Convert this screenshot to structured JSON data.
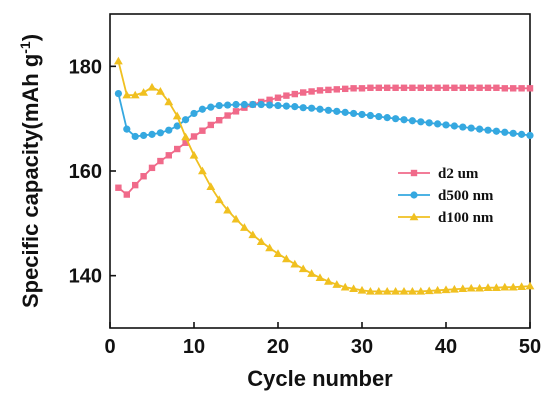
{
  "chart_data": {
    "type": "line",
    "xlabel": "Cycle number",
    "ylabel": "Specific capacity(mAh g",
    "ylabel_superscript": "-1",
    "ylabel_close": ")",
    "xlim": [
      0,
      50
    ],
    "ylim": [
      130,
      190
    ],
    "xticks": [
      0,
      10,
      20,
      30,
      40,
      50
    ],
    "yticks": [
      140,
      160,
      180
    ],
    "grid": false,
    "legend_position": "center-right",
    "x": [
      1,
      2,
      3,
      4,
      5,
      6,
      7,
      8,
      9,
      10,
      11,
      12,
      13,
      14,
      15,
      16,
      17,
      18,
      19,
      20,
      21,
      22,
      23,
      24,
      25,
      26,
      27,
      28,
      29,
      30,
      31,
      32,
      33,
      34,
      35,
      36,
      37,
      38,
      39,
      40,
      41,
      42,
      43,
      44,
      45,
      46,
      47,
      48,
      49,
      50
    ],
    "series": [
      {
        "name": "d2 um",
        "color": "#f06a8a",
        "marker": "square",
        "values": [
          156.8,
          155.5,
          157.3,
          159.0,
          160.6,
          161.9,
          163.0,
          164.2,
          165.4,
          166.6,
          167.7,
          168.8,
          169.7,
          170.6,
          171.4,
          172.1,
          172.7,
          173.2,
          173.6,
          174.0,
          174.4,
          174.7,
          175.0,
          175.2,
          175.4,
          175.5,
          175.6,
          175.7,
          175.8,
          175.8,
          175.9,
          175.9,
          175.9,
          175.9,
          175.9,
          175.9,
          175.9,
          175.9,
          175.9,
          175.9,
          175.9,
          175.9,
          175.9,
          175.9,
          175.9,
          175.9,
          175.8,
          175.8,
          175.8,
          175.8
        ]
      },
      {
        "name": "d500 nm",
        "color": "#35a8e0",
        "marker": "circle",
        "values": [
          174.8,
          168.0,
          166.6,
          166.8,
          167.0,
          167.3,
          167.8,
          168.6,
          169.8,
          171.0,
          171.8,
          172.2,
          172.5,
          172.6,
          172.7,
          172.7,
          172.7,
          172.7,
          172.6,
          172.5,
          172.4,
          172.3,
          172.1,
          172.0,
          171.8,
          171.6,
          171.4,
          171.2,
          171.0,
          170.8,
          170.6,
          170.4,
          170.2,
          170.0,
          169.8,
          169.6,
          169.4,
          169.2,
          169.0,
          168.8,
          168.6,
          168.4,
          168.2,
          168.0,
          167.8,
          167.6,
          167.4,
          167.2,
          167.0,
          166.8
        ]
      },
      {
        "name": "d100 nm",
        "color": "#f0c020",
        "marker": "triangle",
        "values": [
          181.0,
          174.5,
          174.5,
          175.0,
          176.0,
          175.2,
          173.2,
          170.5,
          166.5,
          163.0,
          160.0,
          157.0,
          154.5,
          152.5,
          150.8,
          149.2,
          147.8,
          146.5,
          145.3,
          144.2,
          143.2,
          142.2,
          141.3,
          140.4,
          139.6,
          138.9,
          138.3,
          137.8,
          137.5,
          137.2,
          137.0,
          137.0,
          137.0,
          137.0,
          137.0,
          137.0,
          137.0,
          137.1,
          137.2,
          137.3,
          137.4,
          137.5,
          137.6,
          137.6,
          137.7,
          137.7,
          137.8,
          137.8,
          137.9,
          138.0
        ]
      }
    ]
  }
}
